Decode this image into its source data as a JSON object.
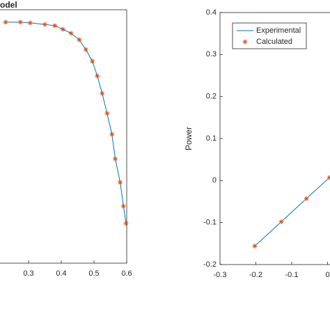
{
  "chart_data": [
    {
      "type": "line",
      "title": "odel",
      "x": [
        0.23,
        0.275,
        0.305,
        0.35,
        0.38,
        0.405,
        0.43,
        0.455,
        0.475,
        0.495,
        0.51,
        0.525,
        0.54,
        0.555,
        0.565,
        0.58,
        0.59,
        0.598
      ],
      "xlim": [
        0.2,
        0.6
      ],
      "xticks": [
        0.3,
        0.4,
        0.5,
        0.6
      ],
      "ylim": [
        0,
        1
      ],
      "series": [
        {
          "color": "#0072bd",
          "style": "line",
          "values": [
            0.951,
            0.951,
            0.948,
            0.942,
            0.937,
            0.923,
            0.907,
            0.882,
            0.843,
            0.797,
            0.739,
            0.67,
            0.591,
            0.508,
            0.412,
            0.319,
            0.225,
            0.157
          ]
        },
        {
          "color": "#d95319",
          "style": "marker",
          "values": [
            0.951,
            0.951,
            0.948,
            0.942,
            0.937,
            0.923,
            0.907,
            0.882,
            0.843,
            0.797,
            0.739,
            0.67,
            0.591,
            0.508,
            0.412,
            0.319,
            0.225,
            0.157
          ]
        }
      ]
    },
    {
      "type": "line",
      "ylabel": "Power",
      "x": [
        -0.203,
        -0.129,
        -0.059,
        0.005
      ],
      "xlim": [
        -0.3,
        0.1
      ],
      "xticks": [
        -0.3,
        -0.2,
        -0.1,
        0
      ],
      "ylim": [
        -0.2,
        0.4
      ],
      "yticks": [
        -0.2,
        -0.1,
        0,
        0.1,
        0.2,
        0.3,
        0.4
      ],
      "legend": "upper left",
      "series": [
        {
          "name": "Experimental",
          "color": "#0072bd",
          "style": "line",
          "values": [
            -0.156,
            -0.098,
            -0.043,
            0.007
          ]
        },
        {
          "name": "Calculated",
          "color": "#d95319",
          "style": "marker",
          "values": [
            -0.156,
            -0.098,
            -0.043,
            0.007
          ]
        }
      ]
    }
  ]
}
